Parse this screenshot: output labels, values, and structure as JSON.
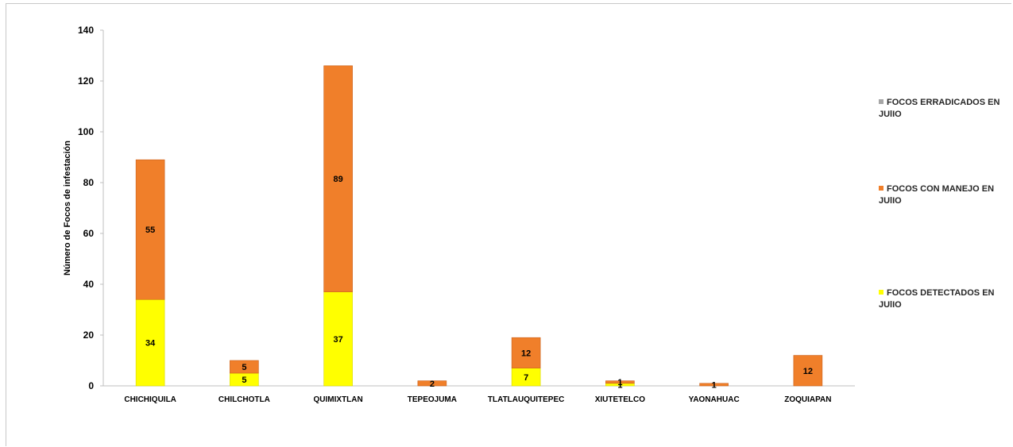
{
  "chart_data": {
    "type": "bar",
    "stacked": true,
    "title": "",
    "xlabel": "",
    "ylabel": "Número de Focos de infestación",
    "ylim": [
      0,
      140
    ],
    "yticks": [
      0,
      20,
      40,
      60,
      80,
      100,
      120,
      140
    ],
    "grid": false,
    "legend_position": "right",
    "categories": [
      "CHICHIQUILA",
      "CHILCHOTLA",
      "QUIMIXTLAN",
      "TEPEOJUMA",
      "TLATLAUQUITEPEC",
      "XIUTETELCO",
      "YAONAHUAC",
      "ZOQUIAPAN"
    ],
    "series": [
      {
        "name": "FOCOS DETECTADOS EN JUlIO",
        "color": "#ffff00",
        "values": [
          34,
          5,
          37,
          0,
          7,
          1,
          0,
          0
        ],
        "labels": [
          "34",
          "5",
          "37",
          "",
          "7",
          "1",
          "",
          ""
        ]
      },
      {
        "name": "FOCOS CON MANEJO EN JUlIO",
        "color": "#f07f2a",
        "values": [
          55,
          5,
          89,
          2,
          12,
          1,
          1,
          12
        ],
        "labels": [
          "55",
          "5",
          "89",
          "2",
          "12",
          "1",
          "1",
          "12"
        ]
      },
      {
        "name": "FOCOS ERRADICADOS EN JUlIO",
        "color": "#a6a6a6",
        "values": [
          0,
          0,
          0,
          0,
          0,
          0,
          0,
          0
        ],
        "labels": [
          "",
          "",
          "",
          "",
          "",
          "",
          "",
          ""
        ]
      }
    ]
  }
}
